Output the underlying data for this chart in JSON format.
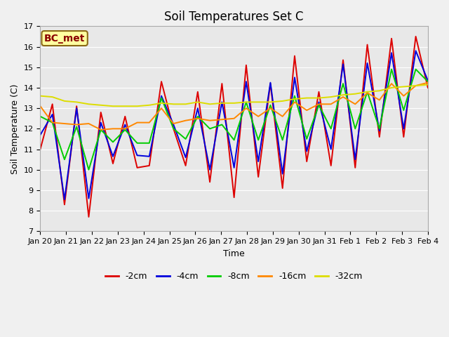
{
  "title": "Soil Temperatures Set C",
  "xlabel": "Time",
  "ylabel": "Soil Temperature (C)",
  "ylim": [
    7.0,
    17.0
  ],
  "yticks": [
    7.0,
    8.0,
    9.0,
    10.0,
    11.0,
    12.0,
    13.0,
    14.0,
    15.0,
    16.0,
    17.0
  ],
  "xtick_labels": [
    "Jan 20",
    "Jan 21",
    "Jan 22",
    "Jan 23",
    "Jan 24",
    "Jan 25",
    "Jan 26",
    "Jan 27",
    "Jan 28",
    "Jan 29",
    "Jan 30",
    "Jan 31",
    "Feb 1",
    "Feb 2",
    "Feb 3",
    "Feb 4"
  ],
  "annotation": "BC_met",
  "colors": {
    "-2cm": "#dd0000",
    "-4cm": "#0000dd",
    "-8cm": "#00cc00",
    "-16cm": "#ff8800",
    "-32cm": "#dddd00"
  },
  "series": {
    "-2cm": [
      11.0,
      13.2,
      8.3,
      13.1,
      7.7,
      12.8,
      10.3,
      12.6,
      10.1,
      10.2,
      14.3,
      12.0,
      10.2,
      13.8,
      9.4,
      14.2,
      8.65,
      15.1,
      9.65,
      14.2,
      9.1,
      15.55,
      10.4,
      13.8,
      10.2,
      15.35,
      10.1,
      16.1,
      11.6,
      16.4,
      11.6,
      16.5,
      14.0
    ],
    "-4cm": [
      11.7,
      12.7,
      8.55,
      13.0,
      8.6,
      12.3,
      10.65,
      12.2,
      10.7,
      10.65,
      13.6,
      12.2,
      10.6,
      13.0,
      10.0,
      13.3,
      10.1,
      14.3,
      10.4,
      14.25,
      9.8,
      14.5,
      10.9,
      13.3,
      11.0,
      15.15,
      10.5,
      15.2,
      11.9,
      15.7,
      12.0,
      15.8,
      14.35
    ],
    "-8cm": [
      12.6,
      12.3,
      10.5,
      12.1,
      10.0,
      11.95,
      11.35,
      11.95,
      11.3,
      11.3,
      13.5,
      12.0,
      11.5,
      12.6,
      12.0,
      12.2,
      11.45,
      13.3,
      11.45,
      13.15,
      11.45,
      13.6,
      11.5,
      13.15,
      12.0,
      14.2,
      12.0,
      13.8,
      12.0,
      14.9,
      12.9,
      14.9,
      14.3
    ],
    "-16cm": [
      13.1,
      12.3,
      12.25,
      12.2,
      12.25,
      11.95,
      12.0,
      12.0,
      12.3,
      12.3,
      13.0,
      12.25,
      12.4,
      12.5,
      12.4,
      12.45,
      12.5,
      13.0,
      12.6,
      13.0,
      12.6,
      13.3,
      12.9,
      13.2,
      13.2,
      13.55,
      13.2,
      13.75,
      13.4,
      14.2,
      13.6,
      14.1,
      14.25
    ],
    "-32cm": [
      13.6,
      13.55,
      13.35,
      13.3,
      13.2,
      13.15,
      13.1,
      13.1,
      13.1,
      13.15,
      13.25,
      13.2,
      13.2,
      13.3,
      13.2,
      13.25,
      13.25,
      13.3,
      13.3,
      13.3,
      13.35,
      13.45,
      13.5,
      13.5,
      13.55,
      13.65,
      13.7,
      13.8,
      13.85,
      14.0,
      14.05,
      14.1,
      14.15
    ]
  },
  "fig_facecolor": "#f0f0f0",
  "ax_facecolor": "#e8e8e8",
  "grid_color": "#ffffff",
  "annotation_facecolor": "#ffffa0",
  "annotation_edgecolor": "#8b6914",
  "annotation_textcolor": "#8b0000",
  "title_fontsize": 12,
  "axis_label_fontsize": 9,
  "tick_fontsize": 8,
  "legend_fontsize": 9,
  "linewidth": 1.4
}
